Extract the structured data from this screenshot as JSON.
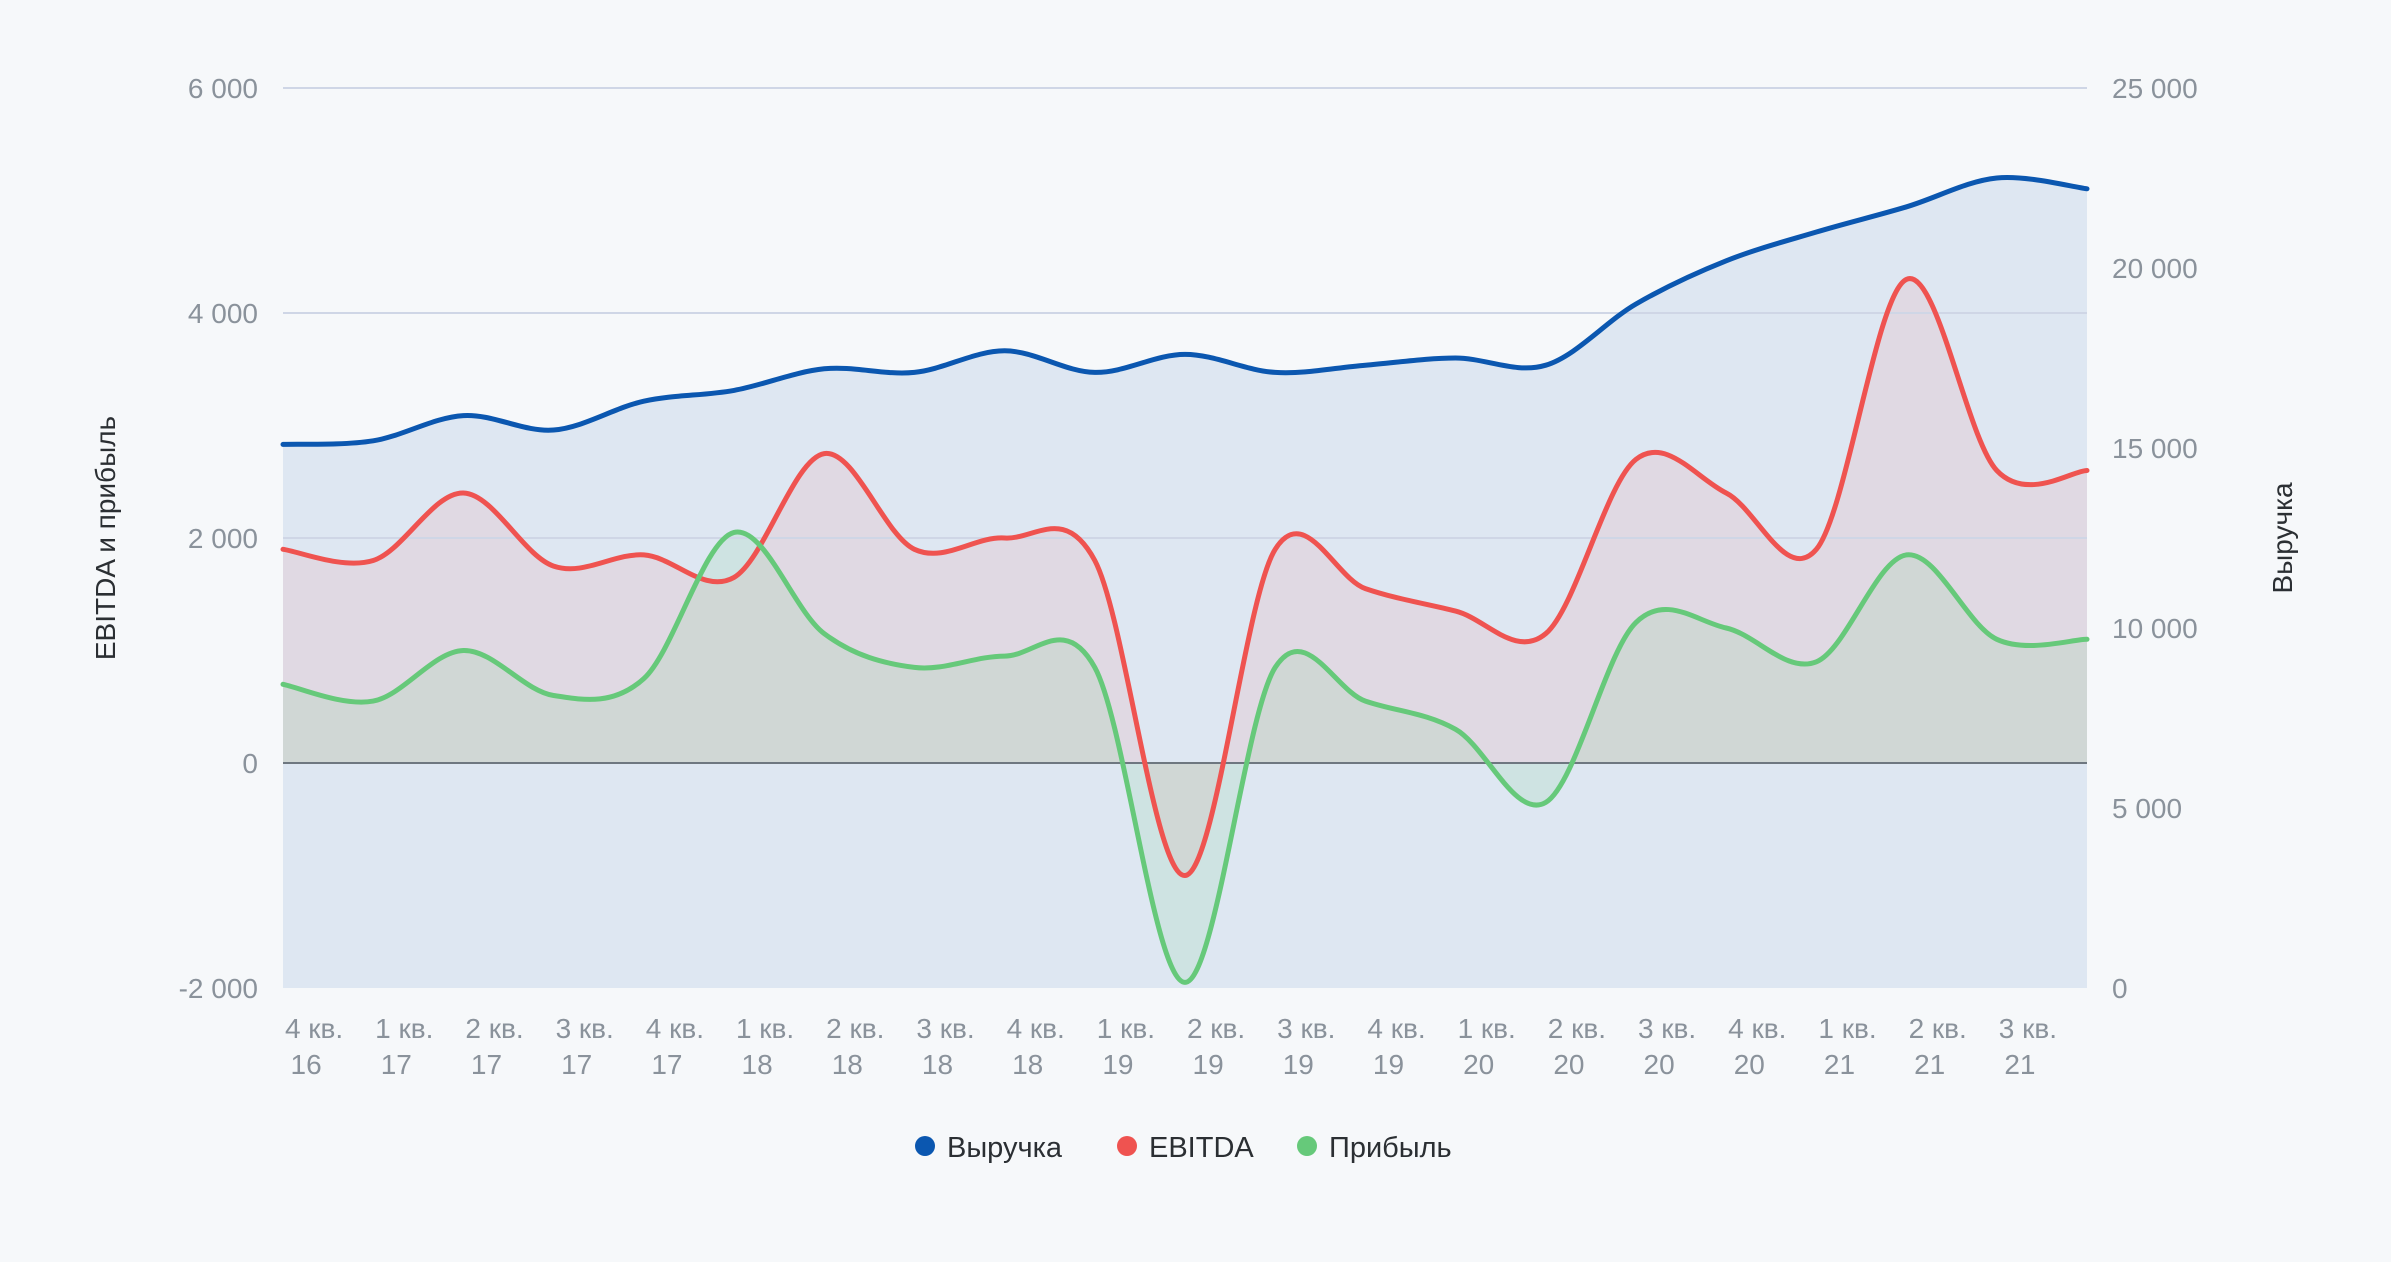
{
  "chart_data": {
    "type": "line",
    "categories": [
      "4 кв. 16",
      "1 кв. 17",
      "2 кв. 17",
      "3 кв. 17",
      "4 кв. 17",
      "1 кв. 18",
      "2 кв. 18",
      "3 кв. 18",
      "4 кв. 18",
      "1 кв. 19",
      "2 кв. 19",
      "3 кв. 19",
      "4 кв. 19",
      "1 кв. 20",
      "2 кв. 20",
      "3 кв. 20",
      "4 кв. 20",
      "1 кв. 21",
      "2 кв. 21",
      "3 кв. 21",
      ""
    ],
    "category_lines": [
      [
        "4 кв.",
        "16"
      ],
      [
        "1 кв.",
        "17"
      ],
      [
        "2 кв.",
        "17"
      ],
      [
        "3 кв.",
        "17"
      ],
      [
        "4 кв.",
        "17"
      ],
      [
        "1 кв.",
        "18"
      ],
      [
        "2 кв.",
        "18"
      ],
      [
        "3 кв.",
        "18"
      ],
      [
        "4 кв.",
        "18"
      ],
      [
        "1 кв.",
        "19"
      ],
      [
        "2 кв.",
        "19"
      ],
      [
        "3 кв.",
        "19"
      ],
      [
        "4 кв.",
        "19"
      ],
      [
        "1 кв.",
        "20"
      ],
      [
        "2 кв.",
        "20"
      ],
      [
        "3 кв.",
        "20"
      ],
      [
        "4 кв.",
        "20"
      ],
      [
        "1 кв.",
        "21"
      ],
      [
        "2 кв.",
        "21"
      ],
      [
        "3 кв.",
        "21"
      ],
      [
        "",
        ""
      ]
    ],
    "series": [
      {
        "name": "Выручка",
        "axis": "right",
        "color": "#0b57b0",
        "values": [
          15100,
          15200,
          15900,
          15500,
          16300,
          16600,
          17200,
          17100,
          17700,
          17100,
          17600,
          17100,
          17300,
          17500,
          17300,
          19000,
          20200,
          21000,
          21700,
          22500,
          22200
        ]
      },
      {
        "name": "EBITDA",
        "axis": "left",
        "color": "#ef5350",
        "values": [
          1900,
          1800,
          2400,
          1750,
          1850,
          1650,
          2750,
          1900,
          2000,
          1800,
          -1000,
          1900,
          1550,
          1350,
          1150,
          2700,
          2400,
          1900,
          4300,
          2600,
          2600
        ]
      },
      {
        "name": "Прибыль",
        "axis": "left",
        "color": "#66c97a",
        "values": [
          700,
          550,
          1000,
          600,
          750,
          2050,
          1150,
          850,
          950,
          850,
          -1950,
          850,
          550,
          300,
          -350,
          1250,
          1200,
          900,
          1850,
          1100,
          1100
        ]
      }
    ],
    "y_left": {
      "label": "EBITDA и прибыль",
      "ticks": [
        "6 000",
        "4 000",
        "2 000",
        "0",
        "-2 000"
      ],
      "tick_values": [
        6000,
        4000,
        2000,
        0,
        -2000
      ],
      "range": [
        -2000,
        6000
      ]
    },
    "y_right": {
      "label": "Выручка",
      "ticks": [
        "25 000",
        "20 000",
        "15 000",
        "10 000",
        "5 000",
        "0"
      ],
      "tick_values": [
        25000,
        20000,
        15000,
        10000,
        5000,
        0
      ],
      "range": [
        0,
        25000
      ]
    },
    "grid": true,
    "legend_position": "bottom"
  }
}
